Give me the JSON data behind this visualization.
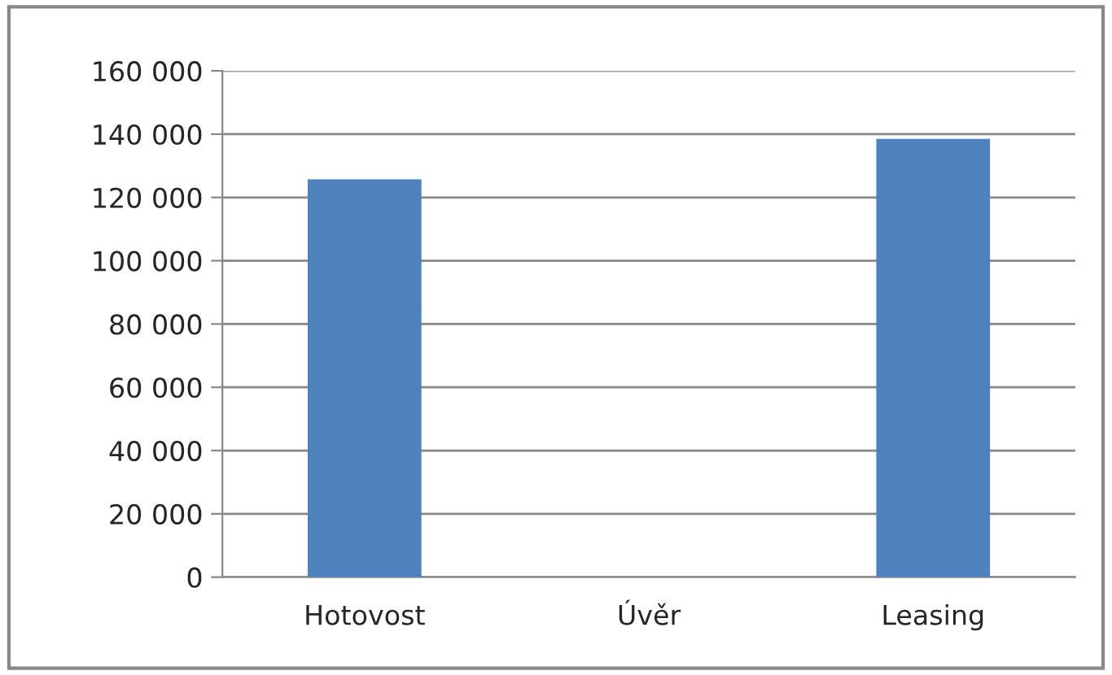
{
  "chart_data": {
    "type": "bar",
    "categories": [
      "Hotovost",
      "Úvěr",
      "Leasing"
    ],
    "values": [
      125700,
      0,
      138500
    ],
    "color": "#4f81bd",
    "ylim": [
      0,
      160000
    ],
    "yticks": [
      {
        "value": 0,
        "label": "0"
      },
      {
        "value": 20000,
        "label": "20 000"
      },
      {
        "value": 40000,
        "label": "40 000"
      },
      {
        "value": 60000,
        "label": "60 000"
      },
      {
        "value": 80000,
        "label": "80 000"
      },
      {
        "value": 100000,
        "label": "100 000"
      },
      {
        "value": 120000,
        "label": "120 000"
      },
      {
        "value": 140000,
        "label": "140 000"
      },
      {
        "value": 160000,
        "label": "160 000"
      }
    ],
    "grid": "y",
    "legend": false
  }
}
